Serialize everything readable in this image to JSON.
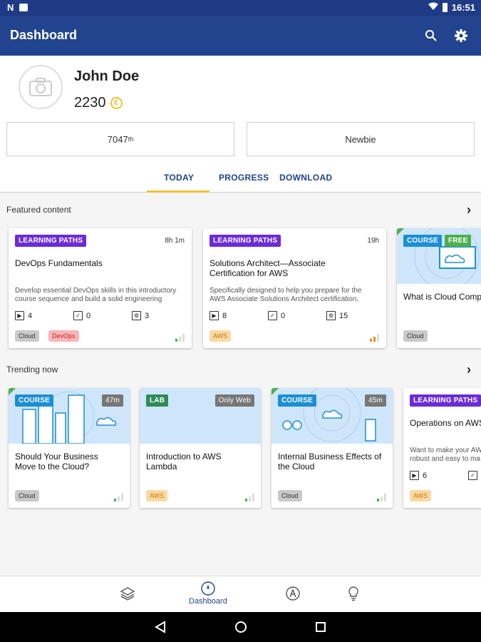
{
  "status_bar": {
    "time": "16:51"
  },
  "app_bar": {
    "title": "Dashboard",
    "icons": [
      "search-icon",
      "gear-icon"
    ]
  },
  "profile": {
    "name": "John Doe",
    "points": "2230",
    "rank": "7047",
    "rank_suffix": "th",
    "level": "Newbie"
  },
  "tabs": [
    {
      "label": "TODAY",
      "active": true
    },
    {
      "label": "PROGRESS",
      "active": false
    },
    {
      "label": "DOWNLOAD",
      "active": false
    }
  ],
  "featured": {
    "title": "Featured content",
    "cards": [
      {
        "badge": "LEARNING PATHS",
        "duration": "8h 1m",
        "title": "DevOps Fundamentals",
        "desc_line1": "Develop essential DevOps skills in this introductory",
        "desc_line2": "course sequence and build a solid engineering",
        "videos": "4",
        "quizzes": "0",
        "labs": "3",
        "tags": [
          "Cloud",
          "DevOps"
        ],
        "level_color": "#4caf50"
      },
      {
        "badge": "LEARNING PATHS",
        "duration": "19h",
        "title_line1": "Solutions Architect—Associate",
        "title_line2": "Certification for AWS",
        "desc_line1": "Specifically designed to help you prepare for the",
        "desc_line2": "AWS Associate Solutions Architect certification,",
        "videos": "8",
        "quizzes": "0",
        "labs": "15",
        "tags": [
          "AWS"
        ],
        "level_color": "#f28c28"
      },
      {
        "badge": "COURSE",
        "badge2": "FREE",
        "title": "What is Cloud Comp",
        "tags": [
          "Cloud"
        ]
      }
    ]
  },
  "trending": {
    "title": "Trending now",
    "cards": [
      {
        "badge": "COURSE",
        "duration": "47m",
        "title_line1": "Should Your Business",
        "title_line2": "Move to the Cloud?",
        "tags": [
          "Cloud"
        ]
      },
      {
        "badge": "LAB",
        "duration": "Only Web",
        "title_line1": "Introduction to AWS",
        "title_line2": "Lambda",
        "tags": [
          "AWS"
        ]
      },
      {
        "badge": "COURSE",
        "duration": "45m",
        "title_line1": "Internal Business Effects of",
        "title_line2": "the Cloud",
        "tags": [
          "Cloud"
        ]
      },
      {
        "badge": "LEARNING PATHS",
        "title": "Operations on AWS",
        "desc_line1": "Want to make your AW",
        "desc_line2": "robust and easy to ma",
        "videos": "6",
        "tags": [
          "AWS"
        ]
      }
    ]
  },
  "bottom_nav": {
    "items": [
      {
        "icon": "layers-icon"
      },
      {
        "icon": "compass-icon",
        "label": "Dashboard",
        "active": true
      },
      {
        "icon": "certification-icon"
      },
      {
        "icon": "lightbulb-icon"
      }
    ]
  },
  "colors": {
    "primary": "#22448e",
    "accent": "#f2c235"
  }
}
